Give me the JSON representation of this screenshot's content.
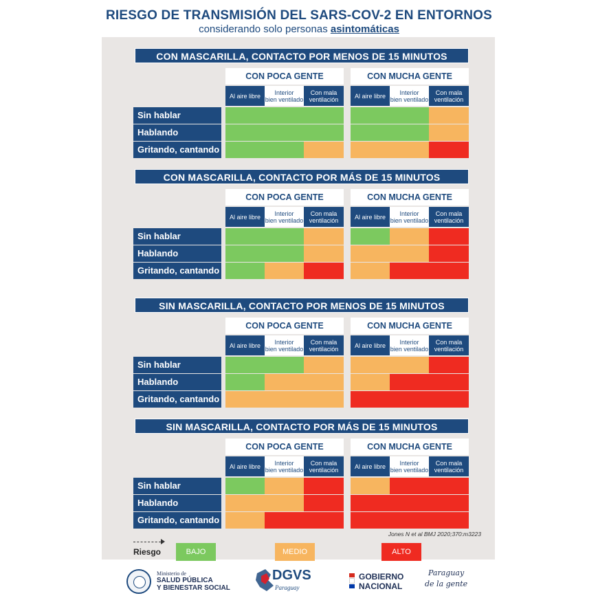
{
  "title": "RIESGO DE TRANSMISIÓN DEL SARS-COV-2 EN ENTORNOS",
  "subtitle_pre": "considerando solo personas ",
  "subtitle_emph": "asintomáticas",
  "group_labels": [
    "CON POCA GENTE",
    "CON MUCHA GENTE"
  ],
  "column_labels": [
    "Al aire libre",
    "Interior\nbien ventilado",
    "Con mala\nventilación"
  ],
  "row_labels": [
    "Sin hablar",
    "Hablando",
    "Gritando, cantando"
  ],
  "colors": {
    "bajo": "#7cc95f",
    "medio": "#f7b55f",
    "alto": "#ef2b21",
    "navy": "#1e4a7e"
  },
  "sections": [
    {
      "header": "CON MASCARILLA, CONTACTO POR MENOS DE 15 MINUTOS",
      "grid": [
        [
          "bajo",
          "bajo",
          "bajo",
          "bajo",
          "bajo",
          "medio"
        ],
        [
          "bajo",
          "bajo",
          "bajo",
          "bajo",
          "bajo",
          "medio"
        ],
        [
          "bajo",
          "bajo",
          "medio",
          "medio",
          "medio",
          "alto"
        ]
      ]
    },
    {
      "header": "CON MASCARILLA, CONTACTO POR MÁS DE 15 MINUTOS",
      "grid": [
        [
          "bajo",
          "bajo",
          "medio",
          "bajo",
          "medio",
          "alto"
        ],
        [
          "bajo",
          "bajo",
          "medio",
          "medio",
          "medio",
          "alto"
        ],
        [
          "bajo",
          "medio",
          "alto",
          "medio",
          "alto",
          "alto"
        ]
      ]
    },
    {
      "header": "SIN MASCARILLA, CONTACTO POR MENOS DE 15 MINUTOS",
      "grid": [
        [
          "bajo",
          "bajo",
          "medio",
          "medio",
          "medio",
          "alto"
        ],
        [
          "bajo",
          "medio",
          "medio",
          "medio",
          "alto",
          "alto"
        ],
        [
          "medio",
          "medio",
          "medio",
          "alto",
          "alto",
          "alto"
        ]
      ]
    },
    {
      "header": "SIN MASCARILLA, CONTACTO POR MÁS DE 15 MINUTOS",
      "grid": [
        [
          "bajo",
          "medio",
          "alto",
          "medio",
          "alto",
          "alto"
        ],
        [
          "medio",
          "medio",
          "alto",
          "alto",
          "alto",
          "alto"
        ],
        [
          "medio",
          "alto",
          "alto",
          "alto",
          "alto",
          "alto"
        ]
      ]
    }
  ],
  "legend": {
    "title": "Riesgo",
    "bajo": "BAJO",
    "medio": "MEDIO",
    "alto": "ALTO"
  },
  "citation": "Jones N et al BMJ 2020;370:m3223",
  "footer": {
    "ministry_line1": "Ministerio de",
    "ministry_line2": "SALUD PÚBLICA",
    "ministry_line3": "Y BIENESTAR SOCIAL",
    "dgvs": "DGVS",
    "dgvs_sub": "Paraguay",
    "gobierno_line1": "GOBIERNO",
    "gobierno_line2": "NACIONAL",
    "slogan_line1": "Paraguay",
    "slogan_line2": "de la gente"
  }
}
